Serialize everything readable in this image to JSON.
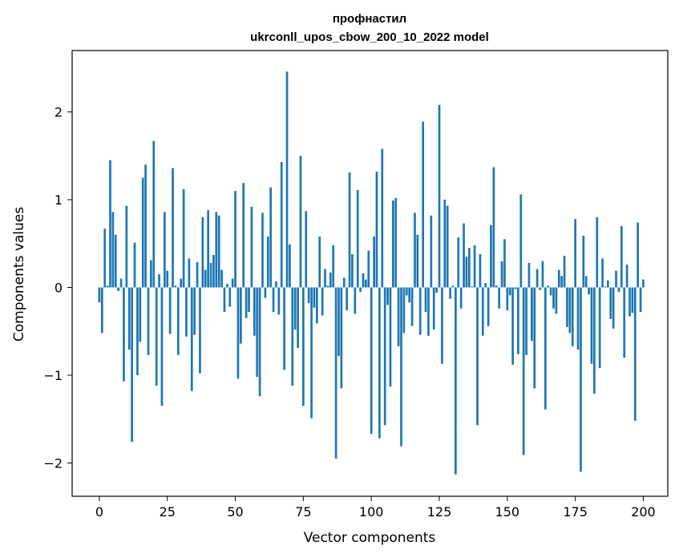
{
  "chart_data": {
    "type": "bar",
    "title": "профнастил",
    "subtitle": "ukrconll_upos_cbow_200_10_2022 model",
    "xlabel": "Vector components",
    "ylabel": "Components values",
    "xlim": [
      -10,
      209
    ],
    "ylim": [
      -2.38,
      2.7
    ],
    "xticks": [
      0,
      25,
      50,
      75,
      100,
      125,
      150,
      175,
      200
    ],
    "yticks": [
      -2,
      -1,
      0,
      1,
      2
    ],
    "ytick_labels": [
      "−2",
      "−1",
      "0",
      "1",
      "2"
    ],
    "bar_color": "#1f77b4",
    "grid": false,
    "legend": "none",
    "values": [
      -0.17,
      -0.52,
      0.67,
      0.02,
      1.45,
      0.86,
      0.6,
      -0.04,
      0.1,
      -1.07,
      0.93,
      -0.71,
      -1.76,
      0.51,
      -1.0,
      -0.62,
      1.25,
      1.4,
      -0.77,
      0.31,
      1.67,
      -1.12,
      0.15,
      -1.35,
      0.86,
      0.19,
      -0.53,
      1.36,
      0.02,
      -0.77,
      0.1,
      1.12,
      -0.56,
      0.33,
      -1.18,
      -0.54,
      0.29,
      -0.98,
      0.8,
      0.2,
      0.88,
      0.28,
      0.37,
      0.86,
      0.82,
      0.2,
      -0.28,
      0.04,
      -0.22,
      0.1,
      1.1,
      -1.04,
      -0.64,
      1.19,
      -0.35,
      -0.28,
      0.92,
      -0.55,
      -1.02,
      -1.24,
      0.85,
      -0.12,
      0.58,
      1.14,
      -0.28,
      0.07,
      -0.31,
      1.43,
      -0.94,
      2.46,
      0.49,
      -1.12,
      -0.48,
      -0.69,
      1.5,
      -1.35,
      0.87,
      -0.18,
      -1.49,
      -0.23,
      -0.41,
      0.58,
      -0.32,
      0.21,
      0.02,
      0.17,
      0.48,
      -1.95,
      -0.78,
      -1.15,
      0.11,
      -0.26,
      1.31,
      0.38,
      -0.3,
      1.11,
      -0.05,
      0.16,
      0.09,
      0.42,
      -1.67,
      0.58,
      1.32,
      -1.72,
      1.58,
      -1.57,
      -0.2,
      -1.13,
      0.99,
      1.02,
      -0.67,
      -1.81,
      -0.52,
      -0.09,
      -0.17,
      -0.44,
      0.85,
      0.6,
      -0.54,
      1.89,
      -0.28,
      -0.55,
      0.82,
      -0.48,
      -0.06,
      2.08,
      -0.87,
      1.0,
      0.93,
      -0.13,
      0.02,
      -2.13,
      0.57,
      -0.24,
      0.73,
      0.35,
      0.45,
      0.01,
      0.48,
      -1.57,
      0.38,
      -0.55,
      0.05,
      -0.44,
      0.71,
      1.37,
      0.02,
      -0.24,
      0.3,
      0.55,
      -0.26,
      -0.09,
      -0.88,
      -0.02,
      -0.76,
      1.06,
      -1.91,
      -0.77,
      0.28,
      -0.61,
      -1.15,
      0.21,
      -0.03,
      0.3,
      -1.39,
      0.02,
      -0.09,
      -0.24,
      -0.3,
      0.2,
      0.13,
      0.36,
      -0.45,
      -0.52,
      -0.67,
      0.78,
      -0.71,
      -2.1,
      0.59,
      0.13,
      -0.08,
      -0.87,
      -1.21,
      0.8,
      -0.92,
      0.33,
      0.01,
      0.08,
      -0.36,
      -0.47,
      0.19,
      -0.05,
      0.7,
      -0.8,
      0.26,
      -0.33,
      -0.29,
      -1.52,
      0.74,
      -0.28,
      0.09
    ]
  }
}
